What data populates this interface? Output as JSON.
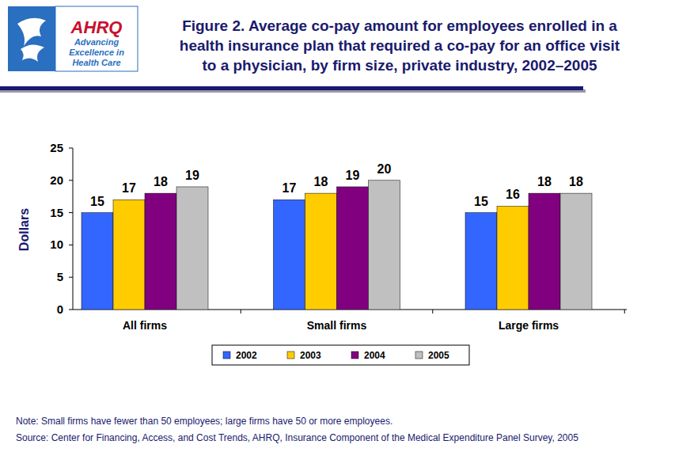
{
  "chart_data": {
    "type": "bar",
    "title": "Figure 2. Average co-pay amount for employees enrolled in a\nhealth insurance plan that required a co-pay for an office visit\nto a physician, by firm size, private industry, 2002–2005",
    "y_label": "Dollars",
    "categories": [
      "All firms",
      "Small firms",
      "Large firms"
    ],
    "series": [
      {
        "name": "2002",
        "color": "#3366ff",
        "values": [
          15,
          17,
          15
        ]
      },
      {
        "name": "2003",
        "color": "#ffcc00",
        "values": [
          17,
          18,
          16
        ]
      },
      {
        "name": "2004",
        "color": "#800080",
        "values": [
          18,
          19,
          18
        ]
      },
      {
        "name": "2005",
        "color": "#c0c0c0",
        "values": [
          19,
          20,
          18
        ]
      }
    ],
    "ylim": [
      0,
      25
    ],
    "yticks": [
      0,
      5,
      10,
      15,
      20,
      25
    ],
    "grid": false,
    "legend": "bottom",
    "data_labels": true,
    "annotations": [
      "Note: Small firms have fewer than 50 employees; large firms have 50 or more employees.",
      "Source: Center for Financing, Access, and Cost Trends, AHRQ, Insurance Component of the Medical Expenditure Panel Survey, 2005"
    ],
    "logo": [
      "AHRQ",
      "Advancing",
      "Excellence in",
      "Health Care"
    ]
  }
}
